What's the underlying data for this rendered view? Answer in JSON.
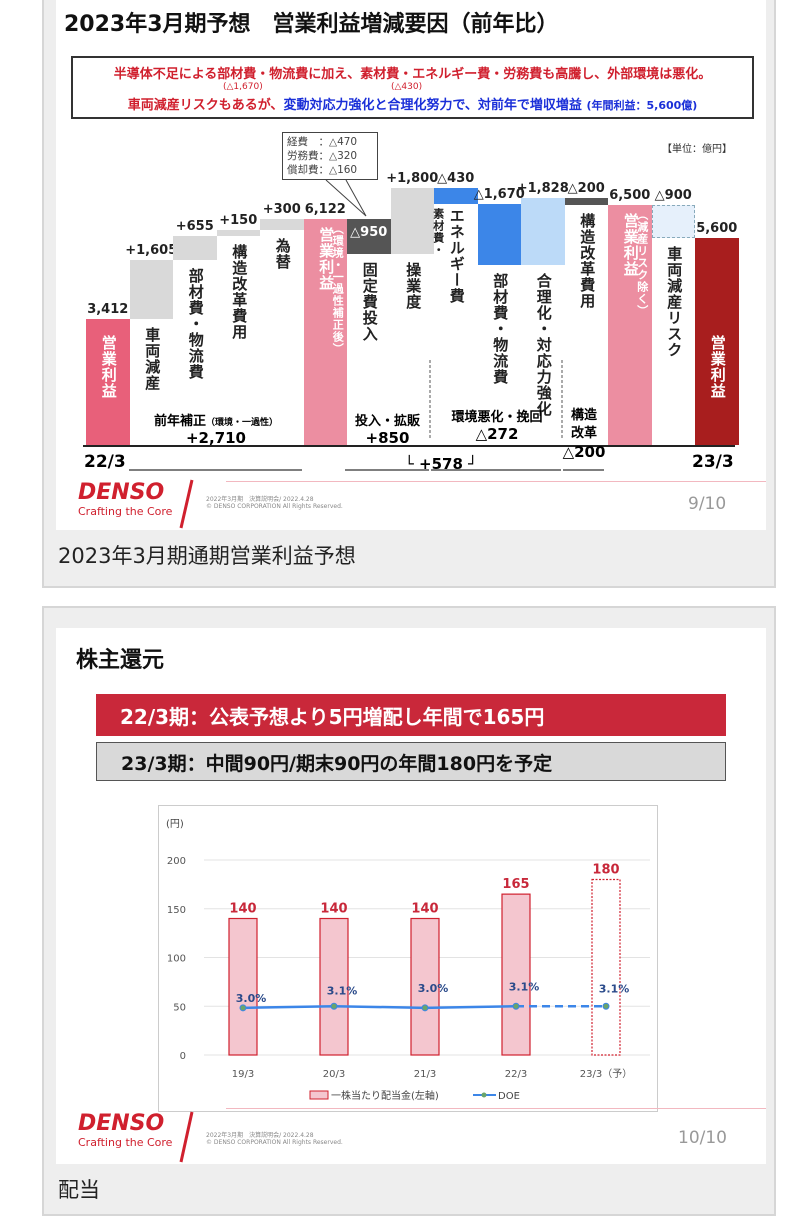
{
  "slide1": {
    "title": "2023年3月期予想　営業利益増減要因（前年比）",
    "message": {
      "line1": "半導体不足による部材費・物流費に加え、素材費・エネルギー費・労務費も高騰し、外部環境は悪化。",
      "note1": "(△1,670)",
      "note2": "(△430)",
      "line2_red": "車両減産リスクもあるが、",
      "line2_blue": "変動対応力強化と合理化努力で、対前年で増収増益",
      "line2_small": "(年間利益：5,600億)"
    },
    "unit": "【単位：億円】",
    "callout": [
      "経費　：△470",
      "労務費：△320",
      "償却費：△160"
    ],
    "bars": [
      {
        "value_label": "3,412",
        "value": 3412,
        "kind": "total",
        "label": "営業利益"
      },
      {
        "value_label": "+1,605",
        "value": 1605,
        "kind": "delta",
        "label": "車両減産"
      },
      {
        "value_label": "+655",
        "value": 655,
        "kind": "delta",
        "label": "部材費・物流費"
      },
      {
        "value_label": "+150",
        "value": 150,
        "kind": "delta",
        "label": "構造改革費用"
      },
      {
        "value_label": "+300",
        "value": 300,
        "kind": "delta",
        "label": "為替"
      },
      {
        "value_label": "6,122",
        "value": 6122,
        "kind": "total",
        "label": "営業利益",
        "sublabel": "（環境・一過性補正後）"
      },
      {
        "value_label": "△950",
        "value": -950,
        "kind": "delta",
        "label": "固定費投入"
      },
      {
        "value_label": "+1,800",
        "value": 1800,
        "kind": "delta",
        "label": "操業度"
      },
      {
        "value_label": "△430",
        "value": -430,
        "kind": "delta",
        "label": "エネルギー費",
        "sublabel": "素材費・"
      },
      {
        "value_label": "△1,670",
        "value": -1670,
        "kind": "delta",
        "label": "部材費・物流費"
      },
      {
        "value_label": "+1,828",
        "value": 1828,
        "kind": "delta",
        "label": "合理化・対応力強化"
      },
      {
        "value_label": "△200",
        "value": -200,
        "kind": "delta",
        "label": "構造改革費用"
      },
      {
        "value_label": "6,500",
        "value": 6500,
        "kind": "total",
        "label": "営業利益",
        "sublabel": "（減産リスク除く）"
      },
      {
        "value_label": "△900",
        "value": -900,
        "kind": "delta",
        "label": "車両減産リスク"
      },
      {
        "value_label": "5,600",
        "value": 5600,
        "kind": "total",
        "label": "営業利益"
      }
    ],
    "groups": [
      {
        "label": "前年補正",
        "small": "（環境・一過性）",
        "value": "+2,710"
      },
      {
        "label": "投入・拡販",
        "value": "+850"
      },
      {
        "label": "環境悪化・挽回",
        "value": "△272"
      },
      {
        "label": "構造改革",
        "value": "△200"
      }
    ],
    "subtotal": "+578",
    "x_start": "22/3",
    "x_end": "23/3",
    "colors": {
      "pink": "#e8607a",
      "lightpink": "#ec8ea1",
      "gray": "#d9d9d9",
      "dark": "#555555",
      "blue": "#3c86e8",
      "lightblue": "#bcdaf8",
      "darkred": "#a81e1e"
    },
    "footer": {
      "brand": "DENSO",
      "tagline": "Crafting the Core",
      "meta1": "2022年3月期　決算説明会/ 2022.4.28",
      "meta2": "© DENSO CORPORATION All Rights Reserved.",
      "page": "9/10"
    },
    "caption": "2023年3月期通期営業利益予想"
  },
  "slide2": {
    "title": "株主還元",
    "banner1": "22/3期：公表予想より5円増配し年間で165円",
    "banner2": "23/3期：中間90円/期末90円の年間180円を予定",
    "footer": {
      "brand": "DENSO",
      "tagline": "Crafting the Core",
      "meta1": "2022年3月期　決算説明会/ 2022.4.28",
      "meta2": "© DENSO CORPORATION All Rights Reserved.",
      "page": "10/10"
    },
    "caption": "配当"
  },
  "chart_data": [
    {
      "type": "bar",
      "title": "2023年3月期予想　営業利益増減要因（前年比）",
      "unit": "億円",
      "categories": [
        "22/3 営業利益",
        "車両減産",
        "部材費・物流費",
        "構造改革費用",
        "為替",
        "営業利益(環境・一過性補正後)",
        "固定費投入",
        "操業度",
        "素材費・エネルギー費",
        "部材費・物流費",
        "合理化・対応力強化",
        "構造改革費用",
        "営業利益(減産リスク除く)",
        "車両減産リスク",
        "23/3 営業利益"
      ],
      "values": [
        3412,
        1605,
        655,
        150,
        300,
        6122,
        -950,
        1800,
        -430,
        -1670,
        1828,
        -200,
        6500,
        -900,
        5600
      ]
    },
    {
      "type": "bar",
      "ylabel": "(円)",
      "ylim": [
        0,
        200
      ],
      "yticks": [
        0,
        50,
        100,
        150,
        200
      ],
      "grid": true,
      "legend": "bottom",
      "categories": [
        "19/3",
        "20/3",
        "21/3",
        "22/3",
        "23/3（予）"
      ],
      "series": [
        {
          "name": "一株当たり配当金(左軸)",
          "values": [
            140,
            140,
            140,
            165,
            180
          ],
          "color": "#d0202e"
        },
        {
          "name": "DOE",
          "type": "line",
          "values": [
            3.0,
            3.1,
            3.0,
            3.1,
            3.1
          ],
          "labels": [
            "3.0%",
            "3.1%",
            "3.0%",
            "3.1%",
            "3.1%"
          ],
          "color": "#3c86e8"
        }
      ]
    }
  ]
}
